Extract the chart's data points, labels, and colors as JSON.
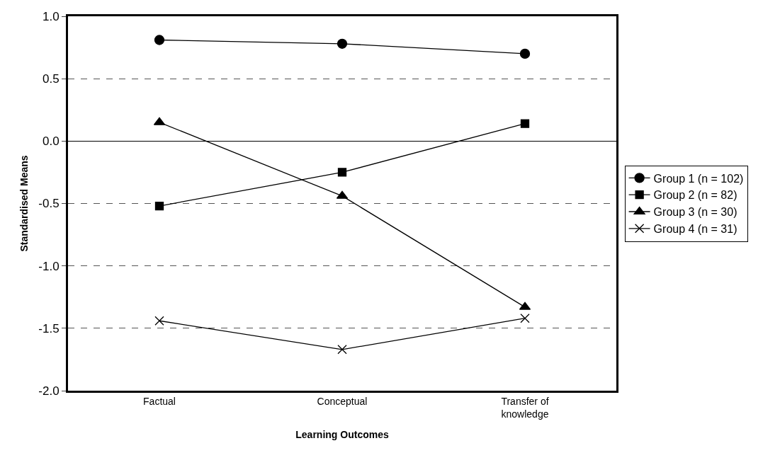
{
  "chart_data": {
    "type": "line",
    "xlabel": "Learning Outcomes",
    "ylabel": "Standardised Means",
    "categories": [
      "Factual",
      "Conceptual",
      "Transfer of knowledge"
    ],
    "series": [
      {
        "name": "Group 1 (n = 102)",
        "color": "#000000",
        "marker": "circle",
        "values": [
          0.81,
          0.78,
          0.7
        ]
      },
      {
        "name": "Group 2 (n = 82)",
        "color": "#000000",
        "marker": "square",
        "values": [
          -0.52,
          -0.25,
          0.14
        ]
      },
      {
        "name": "Group 3 (n = 30)",
        "color": "#000000",
        "marker": "triangle",
        "values": [
          0.15,
          -0.44,
          -1.33
        ]
      },
      {
        "name": "Group 4 (n = 31)",
        "color": "#000000",
        "marker": "cross",
        "values": [
          -1.44,
          -1.67,
          -1.42
        ]
      }
    ],
    "ylim": [
      -2.0,
      1.0
    ],
    "yticks": [
      {
        "value": -2.0,
        "label": "-2.0"
      },
      {
        "value": -1.5,
        "label": "-1.5"
      },
      {
        "value": -1.0,
        "label": "-1.0"
      },
      {
        "value": -0.5,
        "label": "-0.5"
      },
      {
        "value": 0,
        "label": "0.0"
      },
      {
        "value": 0.5,
        "label": "0.5"
      },
      {
        "value": 1.0,
        "label": "1.0"
      }
    ],
    "grid": "y",
    "line_style": "solid",
    "legend": "right"
  }
}
